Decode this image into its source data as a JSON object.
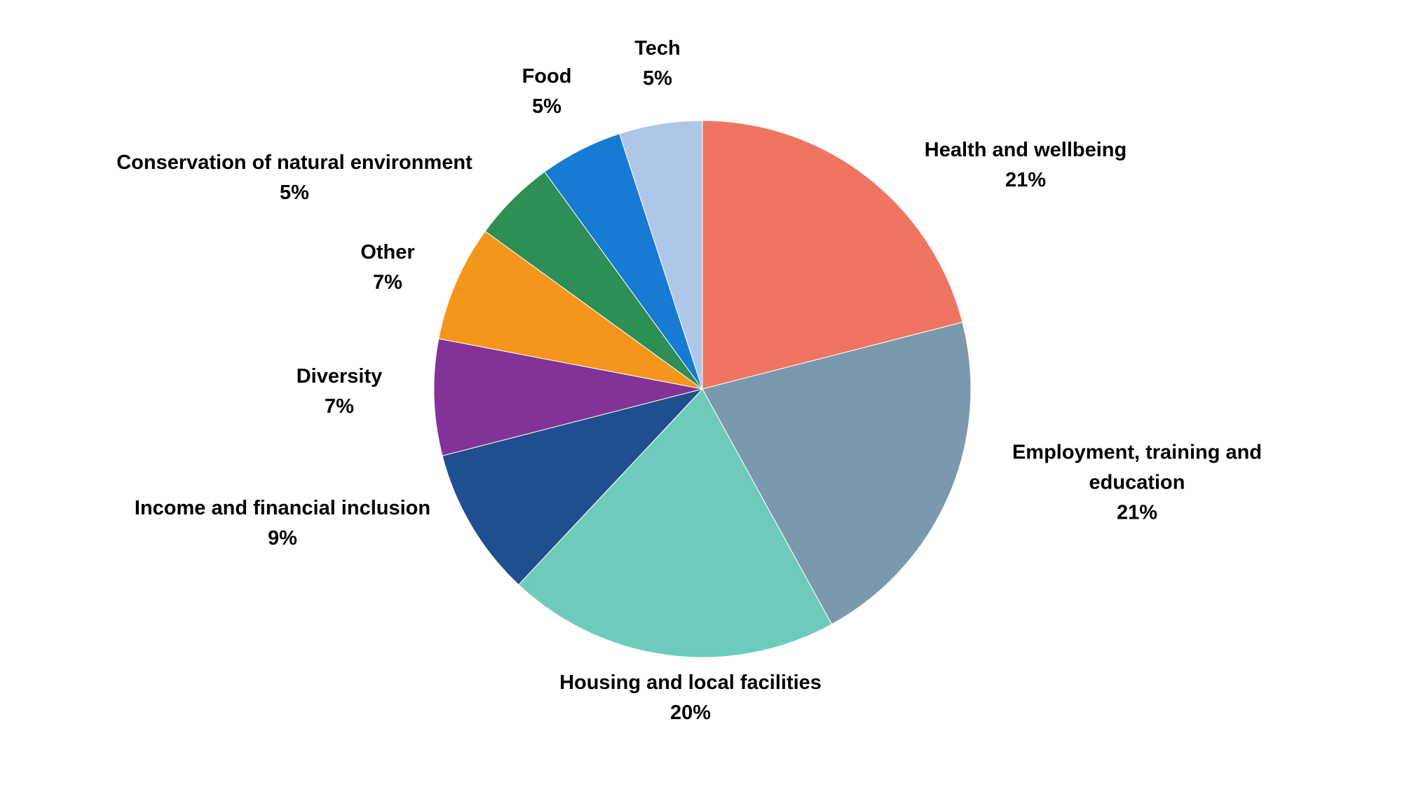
{
  "chart_data": {
    "type": "pie",
    "title": "",
    "start_angle_deg": 0,
    "direction": "clockwise",
    "slices": [
      {
        "id": "health",
        "label": "Health and wellbeing",
        "label_lines": [
          "Health and wellbeing"
        ],
        "value": 21,
        "value_label": "21%",
        "color": "#EF7462"
      },
      {
        "id": "employment",
        "label": "Employment, training and education",
        "label_lines": [
          "Employment, training and",
          "education"
        ],
        "value": 21,
        "value_label": "21%",
        "color": "#7B99AC"
      },
      {
        "id": "housing",
        "label": "Housing and local facilities",
        "label_lines": [
          "Housing and local facilities"
        ],
        "value": 20,
        "value_label": "20%",
        "color": "#6ECBBB"
      },
      {
        "id": "income",
        "label": "Income and financial inclusion",
        "label_lines": [
          "Income and financial inclusion"
        ],
        "value": 9,
        "value_label": "9%",
        "color": "#1F4F8E"
      },
      {
        "id": "diversity",
        "label": "Diversity",
        "label_lines": [
          "Diversity"
        ],
        "value": 7,
        "value_label": "7%",
        "color": "#833398"
      },
      {
        "id": "other",
        "label": "Other",
        "label_lines": [
          "Other"
        ],
        "value": 7,
        "value_label": "7%",
        "color": "#F4961B"
      },
      {
        "id": "conservation",
        "label": "Conservation of natural environment",
        "label_lines": [
          "Conservation of natural environment"
        ],
        "value": 5,
        "value_label": "5%",
        "color": "#2D8E56"
      },
      {
        "id": "food",
        "label": "Food",
        "label_lines": [
          "Food"
        ],
        "value": 5,
        "value_label": "5%",
        "color": "#177BD3"
      },
      {
        "id": "tech",
        "label": "Tech",
        "label_lines": [
          "Tech"
        ],
        "value": 5,
        "value_label": "5%",
        "color": "#AEC7E8"
      }
    ]
  }
}
